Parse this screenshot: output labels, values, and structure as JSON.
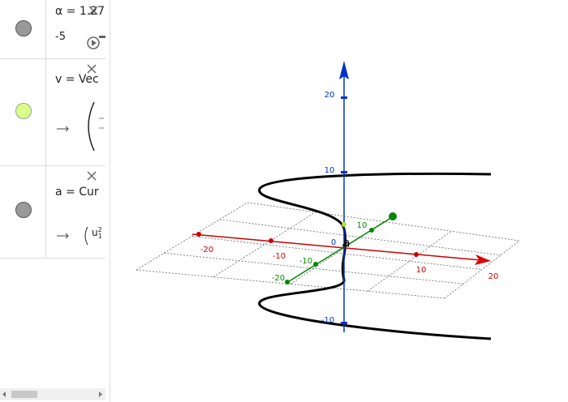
{
  "algebra": {
    "items": [
      {
        "text": "α = 1.27",
        "slider_min": "-5"
      },
      {
        "text": "v = Vec"
      },
      {
        "text": "a = Cur",
        "output_var": "u",
        "output_sup": "2",
        "output_sub": "1"
      }
    ]
  },
  "view3d": {
    "z_labels": [
      "20",
      "10",
      "-10"
    ],
    "x_labels": [
      "-20",
      "-10",
      "10",
      "20"
    ],
    "y_labels": [
      "-20",
      "-10",
      "10"
    ],
    "origin_label": "0",
    "point_label": "a"
  }
}
